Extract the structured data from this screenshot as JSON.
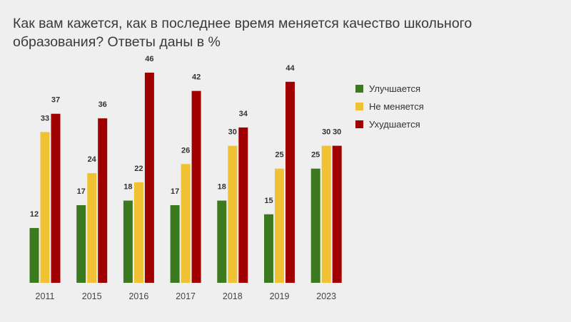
{
  "chart_data": {
    "type": "bar",
    "title": "Как вам кажется, как в последнее время меняется качество школьного образования? Ответы даны в %",
    "categories": [
      "2011",
      "2015",
      "2016",
      "2017",
      "2018",
      "2019",
      "2023"
    ],
    "series": [
      {
        "name": "Улучшается",
        "color": "#3c7a1f",
        "values": [
          12,
          17,
          18,
          17,
          18,
          15,
          25
        ]
      },
      {
        "name": "Не меняется",
        "color": "#f0c233",
        "values": [
          33,
          24,
          22,
          26,
          30,
          25,
          30
        ]
      },
      {
        "name": "Ухудшается",
        "color": "#a00000",
        "values": [
          37,
          36,
          46,
          42,
          34,
          44,
          30
        ]
      }
    ],
    "xlabel": "",
    "ylabel": "",
    "ylim": [
      0,
      46
    ],
    "grid": false,
    "legend": "right"
  }
}
